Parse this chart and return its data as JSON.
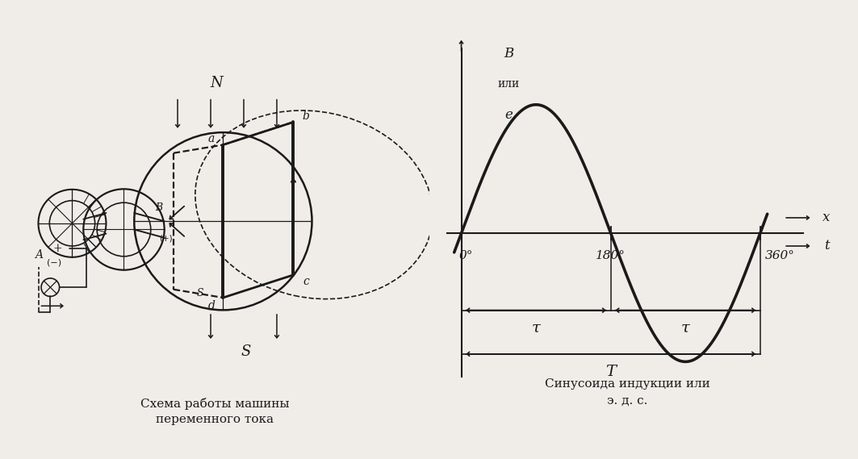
{
  "bg_color": "#f0ede8",
  "line_color": "#1a1a1a",
  "title_left": "Схема работы машины\nпеременного тока",
  "title_right": "Синусоида индукции или\nэ. д. с.",
  "sine_label_B": "В",
  "sine_label_ili": "или",
  "sine_label_e": "е",
  "sine_label_x": "x",
  "sine_label_t": "t",
  "sine_label_0": "0°",
  "sine_label_180": "180°",
  "sine_label_360": "360°",
  "sine_label_tau1": "τ",
  "sine_label_tau2": "τ",
  "sine_label_T": "T",
  "label_N": "N",
  "label_S": "S",
  "label_a": "a",
  "label_b": "b",
  "label_c": "c",
  "label_d": "d",
  "label_A": "A",
  "label_B_brush": "B",
  "label_plus": "+",
  "label_minus": "(−)",
  "label_ring_plus": "(+)"
}
